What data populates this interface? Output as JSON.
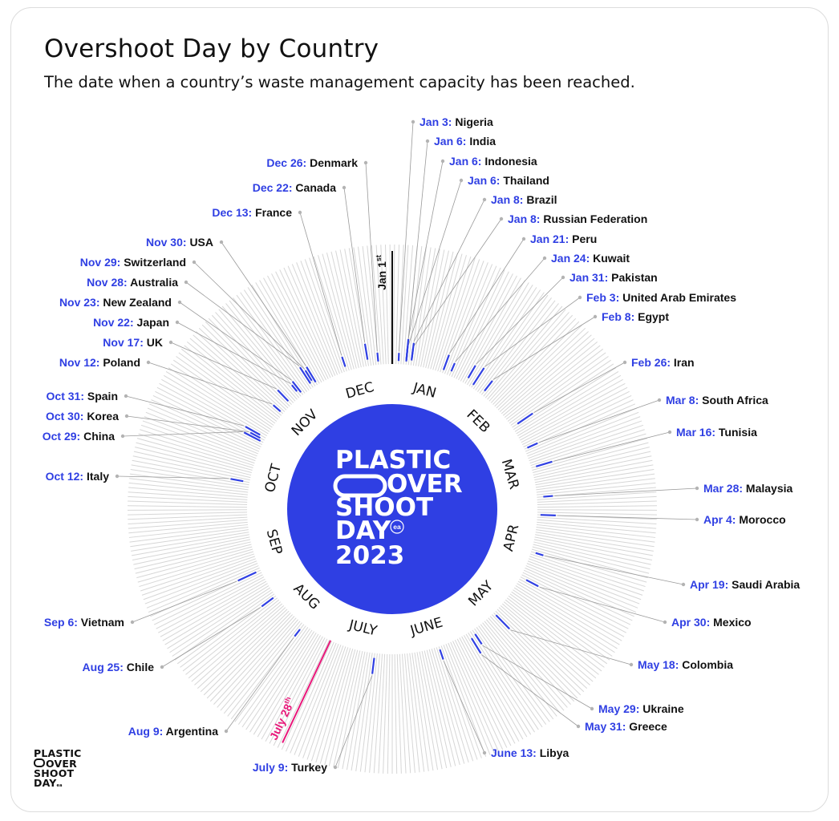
{
  "header": {
    "title": "Overshoot Day by Country",
    "subtitle": "The date when a country’s waste management capacity has been reached."
  },
  "center_logo": {
    "lines": [
      "PLASTIC",
      "OVER",
      "SHOOT",
      "DAY",
      "2023"
    ],
    "badge": "ea"
  },
  "corner_logo": {
    "lines": [
      "PLASTIC",
      "OVER",
      "SHOOT",
      "DAY"
    ],
    "badge": "ea"
  },
  "colors": {
    "accent_blue": "#2f3fe3",
    "highlight_pink": "#e8187a",
    "tick_grey": "#d6d6d6",
    "leader_grey": "#9a9a9a",
    "text": "#111111"
  },
  "chart_data": {
    "type": "radial-bar",
    "year": 2023,
    "months": [
      "JAN",
      "FEB",
      "MAR",
      "APR",
      "MAY",
      "JUNE",
      "JULY",
      "AUG",
      "SEP",
      "OCT",
      "NOV",
      "DEC"
    ],
    "markers": [
      {
        "label": "Jan 1",
        "suffix": "st",
        "day": 1,
        "color": "#111111"
      },
      {
        "label": "July 28",
        "suffix": "th",
        "day": 209,
        "color": "#e8187a"
      }
    ],
    "series": [
      {
        "date": "Jan 3",
        "country": "Nigeria",
        "day": 3
      },
      {
        "date": "Jan 6",
        "country": "India",
        "day": 6
      },
      {
        "date": "Jan 6",
        "country": "Indonesia",
        "day": 6
      },
      {
        "date": "Jan 6",
        "country": "Thailand",
        "day": 6
      },
      {
        "date": "Jan 8",
        "country": "Brazil",
        "day": 8
      },
      {
        "date": "Jan 8",
        "country": "Russian Federation",
        "day": 8
      },
      {
        "date": "Jan 21",
        "country": "Peru",
        "day": 21
      },
      {
        "date": "Jan 24",
        "country": "Kuwait",
        "day": 24
      },
      {
        "date": "Jan 31",
        "country": "Pakistan",
        "day": 31
      },
      {
        "date": "Feb 3",
        "country": "United Arab Emirates",
        "day": 34
      },
      {
        "date": "Feb 8",
        "country": "Egypt",
        "day": 39
      },
      {
        "date": "Feb 26",
        "country": "Iran",
        "day": 57
      },
      {
        "date": "Mar 8",
        "country": "South Africa",
        "day": 67
      },
      {
        "date": "Mar 16",
        "country": "Tunisia",
        "day": 75
      },
      {
        "date": "Mar 28",
        "country": "Malaysia",
        "day": 87
      },
      {
        "date": "Apr 4",
        "country": "Morocco",
        "day": 94
      },
      {
        "date": "Apr 19",
        "country": "Saudi Arabia",
        "day": 109
      },
      {
        "date": "Apr 30",
        "country": "Mexico",
        "day": 120
      },
      {
        "date": "May 18",
        "country": "Colombia",
        "day": 138
      },
      {
        "date": "May 29",
        "country": "Ukraine",
        "day": 149
      },
      {
        "date": "May 31",
        "country": "Greece",
        "day": 151
      },
      {
        "date": "June 13",
        "country": "Libya",
        "day": 164
      },
      {
        "date": "July 9",
        "country": "Turkey",
        "day": 190
      },
      {
        "date": "Aug 9",
        "country": "Argentina",
        "day": 221
      },
      {
        "date": "Aug 25",
        "country": "Chile",
        "day": 237
      },
      {
        "date": "Sep 6",
        "country": "Vietnam",
        "day": 249
      },
      {
        "date": "Oct 12",
        "country": "Italy",
        "day": 285
      },
      {
        "date": "Oct 29",
        "country": "China",
        "day": 302
      },
      {
        "date": "Oct 30",
        "country": "Korea",
        "day": 303
      },
      {
        "date": "Oct 31",
        "country": "Spain",
        "day": 304
      },
      {
        "date": "Nov 12",
        "country": "Poland",
        "day": 316
      },
      {
        "date": "Nov 17",
        "country": "UK",
        "day": 321
      },
      {
        "date": "Nov 22",
        "country": "Japan",
        "day": 326
      },
      {
        "date": "Nov 23",
        "country": "New Zealand",
        "day": 327
      },
      {
        "date": "Nov 28",
        "country": "Australia",
        "day": 332
      },
      {
        "date": "Nov 29",
        "country": "Switzerland",
        "day": 333
      },
      {
        "date": "Nov 30",
        "country": "USA",
        "day": 334
      },
      {
        "date": "Dec 13",
        "country": "France",
        "day": 347
      },
      {
        "date": "Dec 22",
        "country": "Canada",
        "day": 356
      },
      {
        "date": "Dec 26",
        "country": "Denmark",
        "day": 360
      }
    ]
  }
}
